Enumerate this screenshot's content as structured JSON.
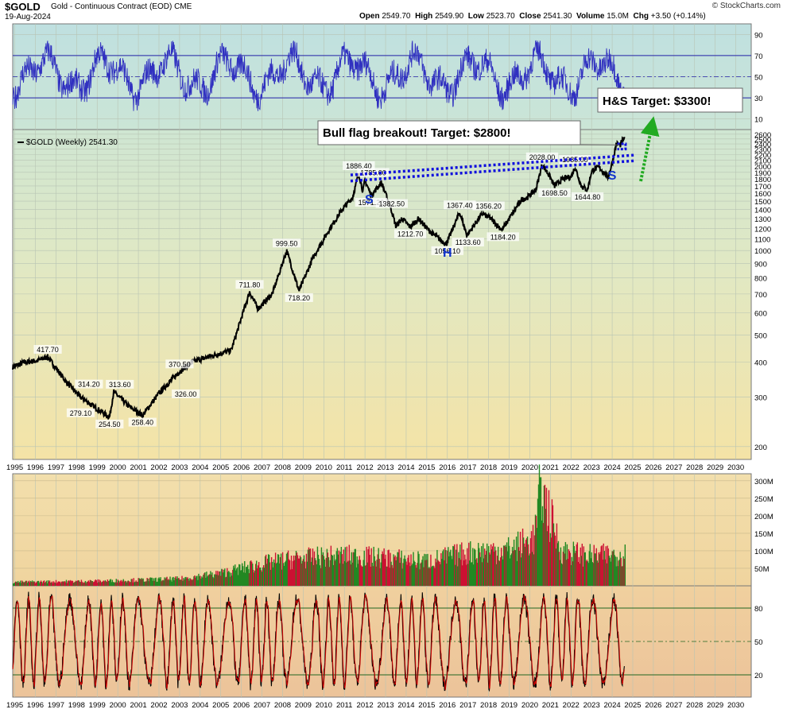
{
  "header": {
    "symbol": "$GOLD",
    "description": "Gold - Continuous Contract (EOD)",
    "exchange": "CME",
    "date": "19-Aug-2024",
    "open_label": "Open",
    "open": "2549.70",
    "high_label": "High",
    "high": "2549.90",
    "low_label": "Low",
    "low": "2523.70",
    "close_label": "Close",
    "close": "2541.30",
    "volume_label": "Volume",
    "volume": "15.0M",
    "chg_label": "Chg",
    "chg": "+3.50 (+0.14%)",
    "brand": "© StockCharts.com"
  },
  "colors": {
    "price_line": "#000000",
    "trendline": "#1010dd",
    "rsi_line": "#3030c0",
    "vol_up": "#228822",
    "vol_down": "#cc1133",
    "stoch_fast": "#cc0000",
    "stoch_slow": "#000000",
    "target_arrow": "#22aa22",
    "hs_letters": "#1133cc"
  },
  "chart_data": [
    {
      "type": "line",
      "panel": "rsi",
      "yticks": [
        10,
        30,
        50,
        70,
        90
      ],
      "ylim": [
        0,
        100
      ],
      "overbought": 70,
      "oversold": 30
    },
    {
      "type": "line",
      "panel": "price",
      "scale": "log",
      "legend": "$GOLD (Weekly) 2541.30",
      "ylim": [
        180,
        2700
      ],
      "yticks": [
        200,
        300,
        400,
        500,
        600,
        700,
        800,
        900,
        1000,
        1100,
        1200,
        1300,
        1400,
        1500,
        1600,
        1700,
        1800,
        1900,
        2000,
        2100,
        2200,
        2300,
        2400,
        2500,
        2600
      ],
      "x_years": [
        1995,
        1996,
        1997,
        1998,
        1999,
        2000,
        2001,
        2002,
        2003,
        2004,
        2005,
        2006,
        2007,
        2008,
        2009,
        2010,
        2011,
        2012,
        2013,
        2014,
        2015,
        2016,
        2017,
        2018,
        2019,
        2020,
        2021,
        2022,
        2023,
        2024,
        2025,
        2026,
        2027,
        2028,
        2029,
        2030
      ],
      "x": [
        1994.9,
        1995.5,
        1996.1,
        1996.6,
        1997.5,
        1998.2,
        1998.8,
        1999.6,
        1999.8,
        2000.5,
        2001.2,
        2002.0,
        2003.0,
        2003.6,
        2004.5,
        2005.5,
        2006.4,
        2006.8,
        2007.5,
        2008.2,
        2008.8,
        2009.5,
        2010.3,
        2010.9,
        2011.4,
        2011.7,
        2011.9,
        2012.0,
        2012.3,
        2012.8,
        2013.3,
        2013.5,
        2013.8,
        2014.2,
        2014.6,
        2015.1,
        2015.6,
        2015.95,
        2016.6,
        2016.95,
        2017.7,
        2018.1,
        2018.65,
        2019.0,
        2019.6,
        2019.9,
        2020.3,
        2020.6,
        2020.95,
        2021.2,
        2021.6,
        2022.0,
        2022.2,
        2022.5,
        2022.8,
        2023.0,
        2023.35,
        2023.8,
        2024.0,
        2024.2,
        2024.4,
        2024.6
      ],
      "y": [
        385,
        400,
        405,
        417.7,
        340,
        300,
        279.1,
        254.5,
        313.6,
        280,
        258.4,
        310,
        370.5,
        400,
        420,
        440,
        711.8,
        620,
        700,
        999.5,
        718.2,
        950,
        1200,
        1400,
        1550,
        1886.4,
        1620,
        1785,
        1571.2,
        1750,
        1382.5,
        1220,
        1300,
        1212.7,
        1300,
        1180,
        1100,
        1056.1,
        1367.4,
        1133.6,
        1356.2,
        1300,
        1184.2,
        1300,
        1520,
        1550,
        1650,
        2028.0,
        1850,
        1698.5,
        1800,
        1830,
        1985.0,
        1700,
        1644.8,
        1920,
        1985,
        1830,
        2050,
        2400,
        2380,
        2541.3
      ],
      "labels": [
        {
          "text": "417.70",
          "x": 1996.6,
          "y": 417.7
        },
        {
          "text": "279.10",
          "x": 1998.2,
          "y": 279.1
        },
        {
          "text": "314.20",
          "x": 1998.6,
          "y": 314.2
        },
        {
          "text": "254.50",
          "x": 1999.6,
          "y": 254.5
        },
        {
          "text": "313.60",
          "x": 2000.1,
          "y": 313.6
        },
        {
          "text": "258.40",
          "x": 2001.2,
          "y": 258.4
        },
        {
          "text": "370.50",
          "x": 2003.0,
          "y": 370.5
        },
        {
          "text": "326.00",
          "x": 2003.3,
          "y": 326.0
        },
        {
          "text": "711.80",
          "x": 2006.4,
          "y": 711.8
        },
        {
          "text": "999.50",
          "x": 2008.2,
          "y": 999.5
        },
        {
          "text": "718.20",
          "x": 2008.8,
          "y": 718.2
        },
        {
          "text": "1886.40",
          "x": 2011.7,
          "y": 1886.4
        },
        {
          "text": "1785.00",
          "x": 2012.4,
          "y": 1785.0
        },
        {
          "text": "1571.20",
          "x": 2012.3,
          "y": 1571.2
        },
        {
          "text": "1382.50",
          "x": 2013.3,
          "y": 1382.5
        },
        {
          "text": "1212.70",
          "x": 2014.2,
          "y": 1212.7
        },
        {
          "text": "1367.40",
          "x": 2016.6,
          "y": 1367.4
        },
        {
          "text": "1056.10",
          "x": 2016.0,
          "y": 1056.1
        },
        {
          "text": "1133.60",
          "x": 2017.0,
          "y": 1133.6
        },
        {
          "text": "1356.20",
          "x": 2018.0,
          "y": 1356.2
        },
        {
          "text": "1184.20",
          "x": 2018.7,
          "y": 1184.2
        },
        {
          "text": "2028.00",
          "x": 2020.6,
          "y": 2028.0
        },
        {
          "text": "1985.00",
          "x": 2022.2,
          "y": 1985.0
        },
        {
          "text": "1698.50",
          "x": 2021.2,
          "y": 1698.5
        },
        {
          "text": "1644.80",
          "x": 2022.8,
          "y": 1644.8
        }
      ],
      "trendlines": [
        {
          "x": [
            2011.3,
            2025.1
          ],
          "y": [
            1860,
            2190
          ]
        },
        {
          "x": [
            2011.3,
            2025.1
          ],
          "y": [
            1770,
            2090
          ]
        }
      ],
      "flag": {
        "x": [
          2024.25,
          2024.65
        ],
        "y": [
          2300,
          2400
        ]
      },
      "pattern_labels": [
        {
          "text": "S",
          "x": 2012.2,
          "y": 1470
        },
        {
          "text": "H",
          "x": 2016.0,
          "y": 950
        },
        {
          "text": "S",
          "x": 2024.0,
          "y": 1790
        }
      ],
      "annotations": [
        {
          "text": "Bull flag breakout!  Target: $2800!",
          "x": 2016.5,
          "y": 2950
        },
        {
          "text": "H&S Target: $3300!",
          "x": 2024.1,
          "y": 3300
        }
      ]
    },
    {
      "type": "bar",
      "panel": "volume",
      "yticks": [
        "50M",
        "100M",
        "150M",
        "200M",
        "250M",
        "300M"
      ],
      "ytick_values": [
        50,
        100,
        150,
        200,
        250,
        300
      ],
      "ylim": [
        0,
        320
      ],
      "unit": "M",
      "profile_x": [
        1995,
        1999,
        2003,
        2005,
        2007,
        2008.5,
        2011,
        2013,
        2015,
        2017,
        2019,
        2020.2,
        2020.5,
        2021.5,
        2023,
        2024.6
      ],
      "profile_y": [
        12,
        15,
        22,
        40,
        70,
        85,
        95,
        88,
        78,
        105,
        115,
        150,
        310,
        110,
        95,
        100
      ]
    },
    {
      "type": "line",
      "panel": "stochastic",
      "yticks": [
        20,
        50,
        80
      ],
      "ylim": [
        0,
        100
      ],
      "upper": 80,
      "lower": 20
    }
  ],
  "footer": {
    "years": [
      "1995",
      "1996",
      "1997",
      "1998",
      "1999",
      "2000",
      "2001",
      "2002",
      "2003",
      "2004",
      "2005",
      "2006",
      "2007",
      "2008",
      "2009",
      "2010",
      "2011",
      "2012",
      "2013",
      "2014",
      "2015",
      "2016",
      "2017",
      "2018",
      "2019",
      "2020",
      "2021",
      "2022",
      "2023",
      "2024",
      "2025",
      "2026",
      "2027",
      "2028",
      "2029",
      "2030"
    ]
  }
}
